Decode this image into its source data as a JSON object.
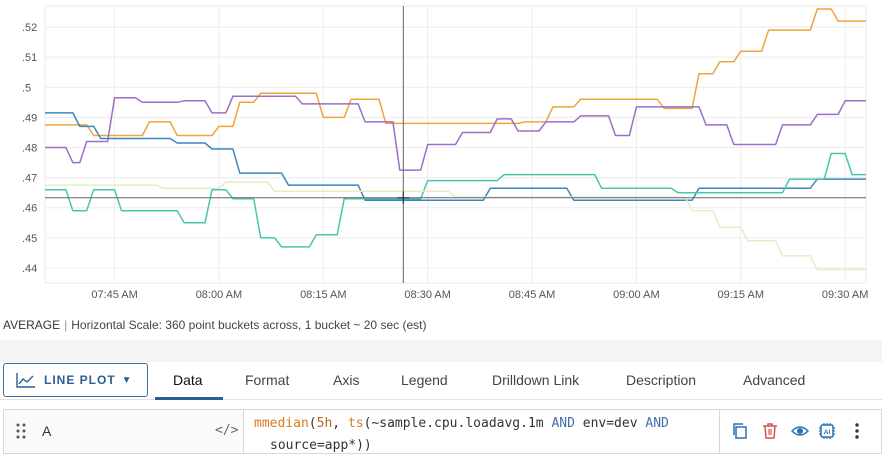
{
  "chart_data": {
    "type": "line",
    "y_ticks": [
      ".52",
      ".51",
      ".5",
      ".49",
      ".48",
      ".47",
      ".46",
      ".45",
      ".44"
    ],
    "y_tick_values": [
      0.52,
      0.51,
      0.5,
      0.49,
      0.48,
      0.47,
      0.46,
      0.45,
      0.44
    ],
    "ylim": [
      0.435,
      0.527
    ],
    "x_ticks": [
      "07:45 AM",
      "08:00 AM",
      "08:15 AM",
      "08:30 AM",
      "08:45 AM",
      "09:00 AM",
      "09:15 AM",
      "09:30 AM"
    ],
    "x_tick_minutes": [
      0,
      15,
      30,
      45,
      60,
      75,
      90,
      105
    ],
    "xlim_minutes": [
      -10,
      108
    ],
    "grid": true,
    "cursor": {
      "x_minute": 41.5,
      "y_value": 0.4633
    },
    "series": [
      {
        "color": "#f0a33a",
        "points": [
          [
            -10,
            0.4875
          ],
          [
            -4,
            0.4875
          ],
          [
            -3,
            0.484
          ],
          [
            4,
            0.484
          ],
          [
            5,
            0.4885
          ],
          [
            8,
            0.4885
          ],
          [
            9,
            0.484
          ],
          [
            14,
            0.484
          ],
          [
            15,
            0.487
          ],
          [
            17,
            0.487
          ],
          [
            18,
            0.495
          ],
          [
            20,
            0.495
          ],
          [
            21,
            0.498
          ],
          [
            29,
            0.498
          ],
          [
            30,
            0.49
          ],
          [
            33,
            0.49
          ],
          [
            34,
            0.496
          ],
          [
            38,
            0.496
          ],
          [
            39,
            0.488
          ],
          [
            58,
            0.488
          ],
          [
            59,
            0.4885
          ],
          [
            62,
            0.4885
          ],
          [
            63,
            0.4935
          ],
          [
            66,
            0.4935
          ],
          [
            67,
            0.496
          ],
          [
            78,
            0.496
          ],
          [
            79,
            0.493
          ],
          [
            83,
            0.493
          ],
          [
            84,
            0.5045
          ],
          [
            86,
            0.5045
          ],
          [
            87,
            0.5085
          ],
          [
            89,
            0.5085
          ],
          [
            90,
            0.512
          ],
          [
            93,
            0.512
          ],
          [
            94,
            0.519
          ],
          [
            100,
            0.519
          ],
          [
            101,
            0.526
          ],
          [
            103,
            0.526
          ],
          [
            104,
            0.522
          ],
          [
            108,
            0.522
          ]
        ]
      },
      {
        "color": "#9b6fc6",
        "points": [
          [
            -10,
            0.48
          ],
          [
            -7,
            0.48
          ],
          [
            -6,
            0.475
          ],
          [
            -5,
            0.475
          ],
          [
            -4,
            0.482
          ],
          [
            -1,
            0.482
          ],
          [
            0,
            0.4965
          ],
          [
            3,
            0.4965
          ],
          [
            4,
            0.495
          ],
          [
            9,
            0.495
          ],
          [
            10,
            0.4955
          ],
          [
            13,
            0.4955
          ],
          [
            14,
            0.4915
          ],
          [
            16,
            0.4915
          ],
          [
            17,
            0.497
          ],
          [
            26,
            0.497
          ],
          [
            27,
            0.4945
          ],
          [
            35,
            0.4945
          ],
          [
            36,
            0.4885
          ],
          [
            40,
            0.4885
          ],
          [
            41,
            0.4725
          ],
          [
            44,
            0.4725
          ],
          [
            45,
            0.481
          ],
          [
            49,
            0.481
          ],
          [
            50,
            0.485
          ],
          [
            54,
            0.485
          ],
          [
            55,
            0.4895
          ],
          [
            57,
            0.4895
          ],
          [
            58,
            0.4855
          ],
          [
            61,
            0.4855
          ],
          [
            62,
            0.4885
          ],
          [
            66,
            0.4885
          ],
          [
            67,
            0.4905
          ],
          [
            71,
            0.4905
          ],
          [
            72,
            0.484
          ],
          [
            74,
            0.484
          ],
          [
            75,
            0.4935
          ],
          [
            84,
            0.4935
          ],
          [
            85,
            0.4875
          ],
          [
            88,
            0.4875
          ],
          [
            89,
            0.481
          ],
          [
            95,
            0.481
          ],
          [
            96,
            0.4875
          ],
          [
            100,
            0.4875
          ],
          [
            101,
            0.491
          ],
          [
            104,
            0.491
          ],
          [
            105,
            0.4955
          ],
          [
            108,
            0.4955
          ]
        ]
      },
      {
        "color": "#3d86bc",
        "points": [
          [
            -10,
            0.4915
          ],
          [
            -6,
            0.4915
          ],
          [
            -5,
            0.487
          ],
          [
            -3,
            0.487
          ],
          [
            -2,
            0.483
          ],
          [
            8,
            0.483
          ],
          [
            9,
            0.4815
          ],
          [
            13,
            0.4815
          ],
          [
            14,
            0.4795
          ],
          [
            17,
            0.4795
          ],
          [
            18,
            0.4715
          ],
          [
            24,
            0.4715
          ],
          [
            25,
            0.4675
          ],
          [
            35,
            0.4675
          ],
          [
            36,
            0.4625
          ],
          [
            53,
            0.4625
          ],
          [
            54,
            0.4665
          ],
          [
            65,
            0.4665
          ],
          [
            66,
            0.4625
          ],
          [
            83,
            0.4625
          ],
          [
            84,
            0.4665
          ],
          [
            100,
            0.4665
          ],
          [
            101,
            0.4695
          ],
          [
            108,
            0.4695
          ]
        ]
      },
      {
        "color": "#47c6ad",
        "points": [
          [
            -10,
            0.466
          ],
          [
            -7,
            0.466
          ],
          [
            -6,
            0.459
          ],
          [
            -4,
            0.459
          ],
          [
            -3,
            0.466
          ],
          [
            0,
            0.466
          ],
          [
            1,
            0.459
          ],
          [
            9,
            0.459
          ],
          [
            10,
            0.455
          ],
          [
            13,
            0.455
          ],
          [
            14,
            0.466
          ],
          [
            16,
            0.466
          ],
          [
            17,
            0.463
          ],
          [
            20,
            0.463
          ],
          [
            21,
            0.45
          ],
          [
            23,
            0.45
          ],
          [
            24,
            0.447
          ],
          [
            28,
            0.447
          ],
          [
            29,
            0.451
          ],
          [
            32,
            0.451
          ],
          [
            33,
            0.463
          ],
          [
            44,
            0.463
          ],
          [
            45,
            0.469
          ],
          [
            55,
            0.469
          ],
          [
            56,
            0.471
          ],
          [
            69,
            0.471
          ],
          [
            70,
            0.4665
          ],
          [
            80,
            0.4665
          ],
          [
            81,
            0.465
          ],
          [
            96,
            0.465
          ],
          [
            97,
            0.4695
          ],
          [
            102,
            0.4695
          ],
          [
            103,
            0.478
          ],
          [
            105,
            0.478
          ],
          [
            106,
            0.471
          ],
          [
            108,
            0.471
          ]
        ]
      },
      {
        "color": "#e6ecc6",
        "points": [
          [
            -10,
            0.4675
          ],
          [
            6,
            0.4675
          ],
          [
            7,
            0.4665
          ],
          [
            15,
            0.4665
          ],
          [
            16,
            0.4685
          ],
          [
            22,
            0.4685
          ],
          [
            23,
            0.4655
          ],
          [
            48,
            0.4655
          ],
          [
            49,
            0.4635
          ],
          [
            82,
            0.4635
          ],
          [
            83,
            0.459
          ],
          [
            86,
            0.459
          ],
          [
            87,
            0.4535
          ],
          [
            90,
            0.4535
          ],
          [
            91,
            0.449
          ],
          [
            95,
            0.449
          ],
          [
            96,
            0.444
          ],
          [
            100,
            0.444
          ],
          [
            101,
            0.4395
          ],
          [
            108,
            0.4395
          ]
        ]
      }
    ]
  },
  "summary": {
    "aggregation": "AVERAGE",
    "separator": "|",
    "scale_text": "Horizontal Scale: 360 point buckets across, 1 bucket ~ 20 sec (est)"
  },
  "toolbar": {
    "chart_type_label": "LINE PLOT",
    "tabs": [
      "Data",
      "Format",
      "Axis",
      "Legend",
      "Drilldown Link",
      "Description",
      "Advanced"
    ],
    "active_tab": "Data"
  },
  "query": {
    "letter": "A",
    "code_toggle": "</>",
    "line1": {
      "fn": "mmedian",
      "p1": "(",
      "num": "5h",
      "p2": ", ",
      "fn2": "ts",
      "p3": "(~sample.cpu.loadavg.1m ",
      "op1": "AND",
      "p4": " env=dev ",
      "op2": "AND"
    },
    "line2": "source=app*))"
  },
  "icons": {
    "drag": "drag-handle-icon",
    "copy": "copy-icon",
    "delete": "trash-icon",
    "toggle": "eye-icon",
    "ai": "ai-chip-icon",
    "more": "more-vertical-icon"
  },
  "colors": {
    "accent": "#2d5e93",
    "delete": "#d9534f"
  }
}
